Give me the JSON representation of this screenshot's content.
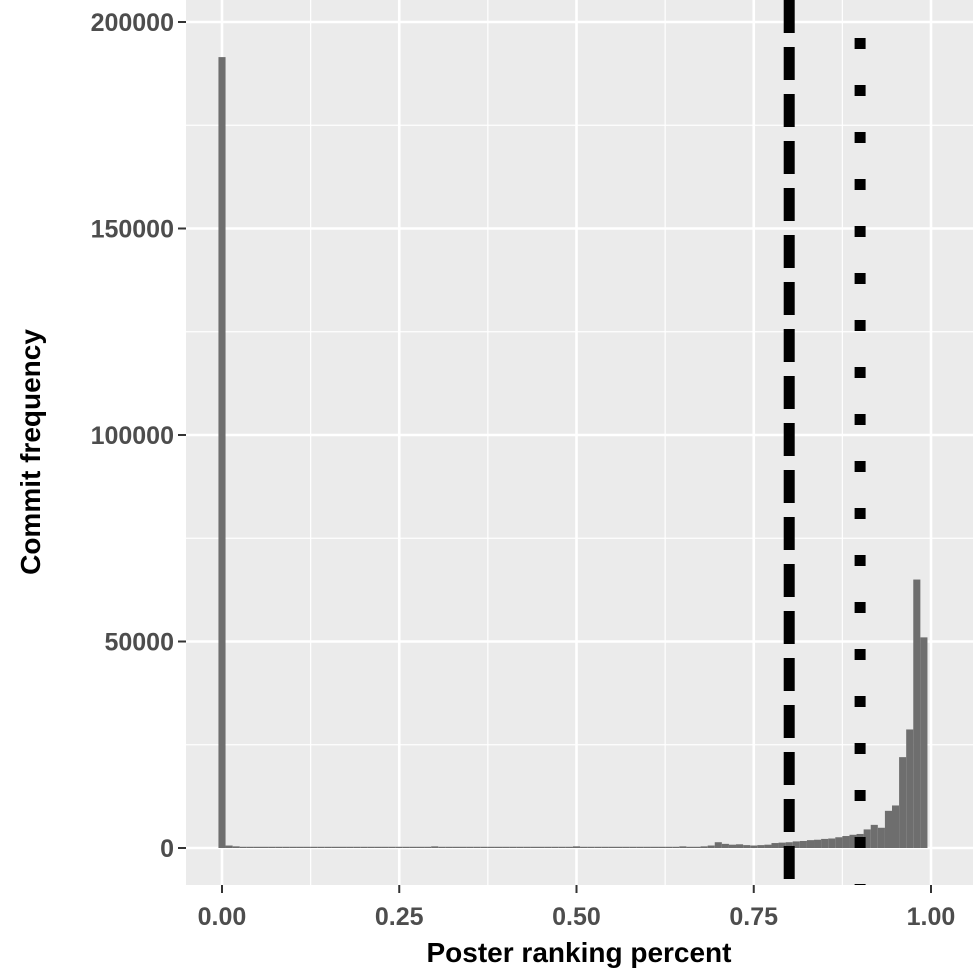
{
  "chart_data": {
    "type": "bar",
    "subtype": "histogram",
    "title": "",
    "xlabel": "Poster ranking percent",
    "ylabel": "Commit frequency",
    "xlim": [
      -0.05,
      1.05
    ],
    "ylim": [
      -9000,
      200500
    ],
    "x_ticks": [
      0,
      0.25,
      0.5,
      0.75,
      1
    ],
    "x_tick_labels": [
      "0.00",
      "0.25",
      "0.50",
      "0.75",
      "1.00"
    ],
    "y_ticks": [
      0,
      50000,
      100000,
      150000,
      200000
    ],
    "y_tick_labels": [
      "0",
      "50000",
      "100000",
      "150000",
      "200000"
    ],
    "grid": true,
    "background": "#ebebeb",
    "bar_color": "#6e6e6e",
    "bin_width": 0.01,
    "bins": {
      "x": [
        0.0,
        0.01,
        0.02,
        0.03,
        0.04,
        0.05,
        0.06,
        0.07,
        0.08,
        0.09,
        0.1,
        0.11,
        0.12,
        0.13,
        0.14,
        0.15,
        0.16,
        0.17,
        0.18,
        0.19,
        0.2,
        0.21,
        0.22,
        0.23,
        0.24,
        0.25,
        0.26,
        0.27,
        0.28,
        0.29,
        0.3,
        0.31,
        0.32,
        0.33,
        0.34,
        0.35,
        0.36,
        0.37,
        0.38,
        0.39,
        0.4,
        0.41,
        0.42,
        0.43,
        0.44,
        0.45,
        0.46,
        0.47,
        0.48,
        0.49,
        0.5,
        0.51,
        0.52,
        0.53,
        0.54,
        0.55,
        0.56,
        0.57,
        0.58,
        0.59,
        0.6,
        0.61,
        0.62,
        0.63,
        0.64,
        0.65,
        0.66,
        0.67,
        0.68,
        0.69,
        0.7,
        0.71,
        0.72,
        0.73,
        0.74,
        0.75,
        0.76,
        0.77,
        0.78,
        0.79,
        0.8,
        0.81,
        0.82,
        0.83,
        0.84,
        0.85,
        0.86,
        0.87,
        0.88,
        0.89,
        0.9,
        0.91,
        0.92,
        0.93,
        0.94,
        0.95,
        0.96,
        0.97,
        0.98,
        0.99,
        1.0
      ],
      "counts": [
        191500,
        600,
        400,
        300,
        300,
        300,
        300,
        300,
        300,
        300,
        300,
        300,
        300,
        300,
        300,
        300,
        300,
        300,
        300,
        300,
        300,
        300,
        300,
        300,
        300,
        300,
        300,
        300,
        300,
        300,
        400,
        300,
        300,
        300,
        300,
        300,
        300,
        300,
        300,
        300,
        300,
        300,
        300,
        300,
        300,
        300,
        300,
        300,
        300,
        300,
        400,
        300,
        300,
        300,
        300,
        300,
        300,
        300,
        300,
        300,
        300,
        300,
        300,
        300,
        300,
        400,
        300,
        300,
        400,
        600,
        1400,
        1000,
        800,
        900,
        700,
        600,
        700,
        800,
        1200,
        1300,
        1400,
        1600,
        1700,
        1900,
        2000,
        2200,
        2300,
        2600,
        2900,
        3200,
        3400,
        4500,
        5600,
        4900,
        9000,
        10300,
        22000,
        28700,
        65000,
        51000,
        0
      ]
    },
    "reference_lines": [
      {
        "x": 0.8,
        "style": "dashed",
        "color": "#000000"
      },
      {
        "x": 0.9,
        "style": "dotted",
        "color": "#000000"
      }
    ]
  }
}
